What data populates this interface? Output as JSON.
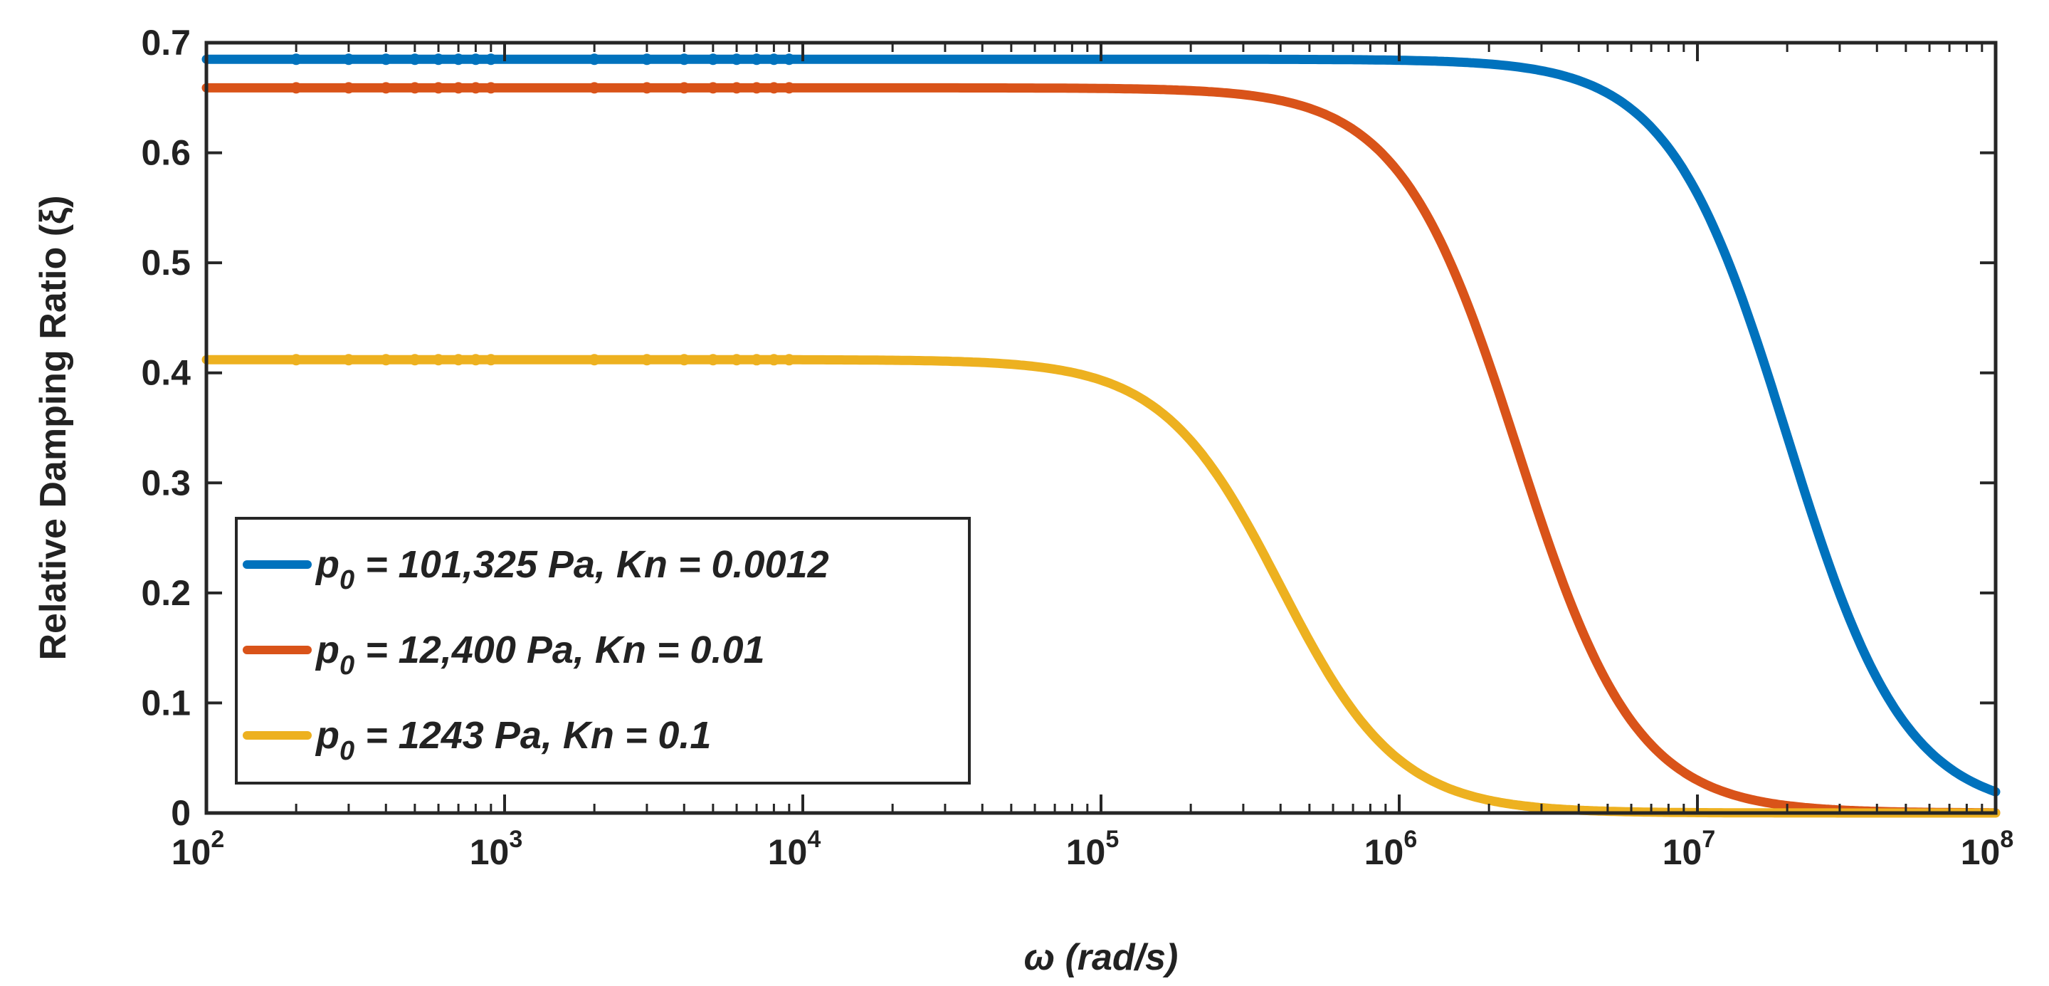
{
  "chart_data": {
    "type": "line",
    "xscale": "log",
    "xlim": [
      100,
      100000000
    ],
    "ylim": [
      0,
      0.7
    ],
    "xlabel": "ω  (rad/s)",
    "ylabel": "Relative Damping Ratio  (ξ)",
    "grid": false,
    "legend_position": "lower-left",
    "yticks": [
      "0",
      "0.1",
      "0.2",
      "0.3",
      "0.4",
      "0.5",
      "0.6",
      "0.7"
    ],
    "xticks": [
      {
        "base": "10",
        "exp": "2"
      },
      {
        "base": "10",
        "exp": "3"
      },
      {
        "base": "10",
        "exp": "4"
      },
      {
        "base": "10",
        "exp": "5"
      },
      {
        "base": "10",
        "exp": "6"
      },
      {
        "base": "10",
        "exp": "7"
      },
      {
        "base": "10",
        "exp": "8"
      }
    ],
    "series": [
      {
        "legend": {
          "sym": "p",
          "sub": "0",
          "text": " = 101,325 Pa, Kn = 0.0012"
        },
        "color": "#0072BD",
        "plateau": 0.685,
        "corner_omega": 20000000,
        "x_log10": [
          2,
          3,
          4,
          5,
          5.5,
          6,
          6.3,
          6.6,
          6.9,
          7.2,
          7.5,
          7.8,
          8
        ],
        "y": [
          0.685,
          0.685,
          0.685,
          0.685,
          0.684,
          0.68,
          0.671,
          0.647,
          0.575,
          0.42,
          0.22,
          0.075,
          0.03
        ]
      },
      {
        "legend": {
          "sym": "p",
          "sub": "0",
          "text": " = 12,400 Pa, Kn = 0.01"
        },
        "color": "#D95319",
        "plateau": 0.659,
        "corner_omega": 2500000,
        "x_log10": [
          2,
          3,
          4,
          5,
          5.3,
          5.6,
          5.9,
          6.2,
          6.5,
          6.8,
          7.1,
          7.4,
          7.7,
          8
        ],
        "y": [
          0.659,
          0.659,
          0.659,
          0.656,
          0.647,
          0.62,
          0.545,
          0.38,
          0.185,
          0.065,
          0.02,
          0.007,
          0.003,
          0.002
        ]
      },
      {
        "legend": {
          "sym": "p",
          "sub": "0",
          "text": " = 1243 Pa, Kn = 0.1"
        },
        "color": "#EDB120",
        "plateau": 0.412,
        "corner_omega": 400000,
        "x_log10": [
          2,
          3,
          4,
          4.5,
          4.8,
          5.1,
          5.4,
          5.7,
          6,
          6.3,
          6.6,
          7,
          7.5,
          8
        ],
        "y": [
          0.412,
          0.412,
          0.411,
          0.408,
          0.398,
          0.37,
          0.3,
          0.19,
          0.085,
          0.03,
          0.01,
          0.003,
          0.001,
          0.001
        ]
      }
    ]
  }
}
